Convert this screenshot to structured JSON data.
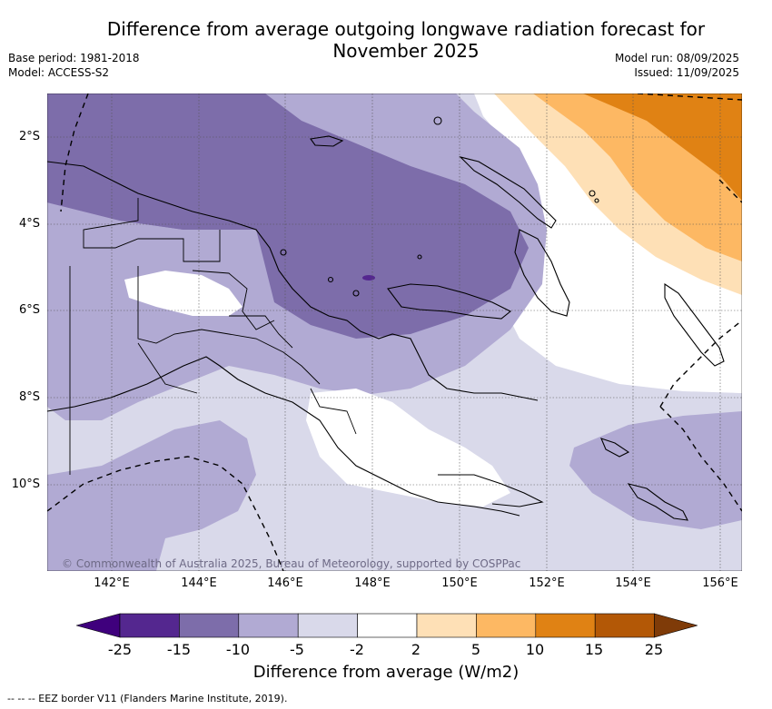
{
  "title_line1": "Difference from average outgoing longwave radiation forecast for",
  "title_line2": "November 2025",
  "meta_left": [
    "Base period: 1981-2018",
    "Model: ACCESS-S2"
  ],
  "meta_right": [
    "Model run: 08/09/2025",
    "Issued: 11/09/2025"
  ],
  "lat_labels": [
    "2°S",
    "4°S",
    "6°S",
    "8°S",
    "10°S"
  ],
  "lon_labels": [
    "142°E",
    "144°E",
    "146°E",
    "148°E",
    "150°E",
    "152°E",
    "154°E",
    "156°E"
  ],
  "copyright": "© Commonwealth of Australia 2025, Bureau of Meteorology, supported by COSPPac",
  "colorbar": {
    "ticks": [
      "-25",
      "-15",
      "-10",
      "-5",
      "-2",
      "2",
      "5",
      "10",
      "15",
      "25"
    ],
    "colors": [
      "#3f007d",
      "#54278f",
      "#7d6daa",
      "#b1aad3",
      "#d9d9ea",
      "#ffffff",
      "#fee0b6",
      "#fdb863",
      "#e08214",
      "#b35806",
      "#7f3b08"
    ],
    "label": "Difference from average (W/m2)"
  },
  "footer": "--  --  -- EEZ border V11 (Flanders Marine Institute, 2019)."
}
